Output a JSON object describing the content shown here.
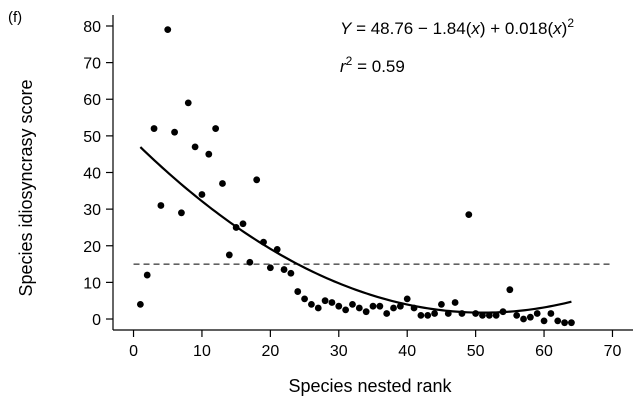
{
  "panel_label": "(f)",
  "equation": {
    "y_var": "Y",
    "rhs_prefix": " = 48.76 − 1.84(",
    "x1": "x",
    "mid": ") + 0.018(",
    "x2": "x",
    "close": ")",
    "exp": "2",
    "r_var": "r",
    "r_exp": "2",
    "r_value": " = 0.59"
  },
  "chart_data": {
    "type": "scatter",
    "title": "",
    "xlabel": "Species nested rank",
    "ylabel": "Species idiosyncrasy score",
    "xlim": [
      -3,
      73
    ],
    "ylim": [
      -3,
      83
    ],
    "xticks": [
      0,
      10,
      20,
      30,
      40,
      50,
      60,
      70
    ],
    "yticks": [
      0,
      10,
      20,
      30,
      40,
      50,
      60,
      70,
      80
    ],
    "grid": false,
    "threshold_line": {
      "y": 15,
      "style": "dashed",
      "x_range": [
        0,
        70
      ]
    },
    "fit": {
      "a": 48.76,
      "b": -1.84,
      "c": 0.018,
      "x_range": [
        1,
        64
      ]
    },
    "points": [
      [
        1,
        4
      ],
      [
        2,
        12
      ],
      [
        3,
        52
      ],
      [
        4,
        31
      ],
      [
        5,
        79
      ],
      [
        6,
        51
      ],
      [
        7,
        29
      ],
      [
        8,
        59
      ],
      [
        9,
        47
      ],
      [
        10,
        34
      ],
      [
        11,
        45
      ],
      [
        12,
        52
      ],
      [
        13,
        37
      ],
      [
        14,
        17.5
      ],
      [
        15,
        25
      ],
      [
        16,
        26
      ],
      [
        17,
        15.5
      ],
      [
        18,
        38
      ],
      [
        19,
        21
      ],
      [
        20,
        14
      ],
      [
        21,
        19
      ],
      [
        22,
        13.5
      ],
      [
        23,
        12.5
      ],
      [
        24,
        7.5
      ],
      [
        25,
        5.5
      ],
      [
        26,
        4
      ],
      [
        27,
        3
      ],
      [
        28,
        5
      ],
      [
        29,
        4.5
      ],
      [
        30,
        3.5
      ],
      [
        31,
        2.5
      ],
      [
        32,
        4
      ],
      [
        33,
        3
      ],
      [
        34,
        2
      ],
      [
        35,
        3.5
      ],
      [
        36,
        3.5
      ],
      [
        37,
        1.5
      ],
      [
        38,
        3
      ],
      [
        39,
        3.5
      ],
      [
        40,
        5.5
      ],
      [
        41,
        3
      ],
      [
        42,
        1
      ],
      [
        43,
        1
      ],
      [
        44,
        1.5
      ],
      [
        45,
        4
      ],
      [
        46,
        1.5
      ],
      [
        47,
        4.5
      ],
      [
        48,
        1.5
      ],
      [
        49,
        28.5
      ],
      [
        50,
        1.5
      ],
      [
        51,
        1
      ],
      [
        52,
        1
      ],
      [
        53,
        1
      ],
      [
        54,
        2
      ],
      [
        55,
        8
      ],
      [
        56,
        1
      ],
      [
        57,
        0
      ],
      [
        58,
        0.5
      ],
      [
        59,
        1.5
      ],
      [
        60,
        -0.5
      ],
      [
        61,
        1.5
      ],
      [
        62,
        -0.5
      ],
      [
        63,
        -1
      ],
      [
        64,
        -1
      ]
    ]
  }
}
